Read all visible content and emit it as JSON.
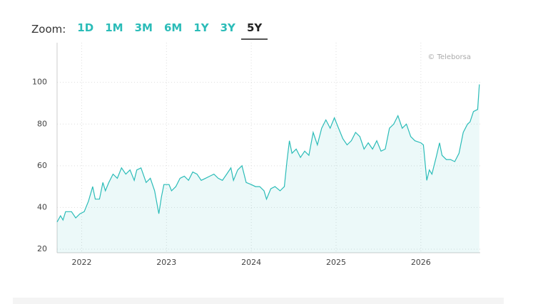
{
  "chart_data": {
    "type": "line",
    "zoom": {
      "label": "Zoom:",
      "options": [
        "1D",
        "1M",
        "3M",
        "6M",
        "1Y",
        "3Y",
        "5Y"
      ],
      "selected": 6
    },
    "credit": "© Teleborsa",
    "x": [
      2021.71,
      2021.75,
      2021.78,
      2021.81,
      2021.88,
      2021.93,
      2021.98,
      2022.03,
      2022.08,
      2022.13,
      2022.16,
      2022.21,
      2022.25,
      2022.28,
      2022.32,
      2022.37,
      2022.42,
      2022.47,
      2022.52,
      2022.57,
      2022.62,
      2022.65,
      2022.7,
      2022.76,
      2022.81,
      2022.86,
      2022.91,
      2022.94,
      2022.97,
      2023.03,
      2023.06,
      2023.11,
      2023.16,
      2023.21,
      2023.26,
      2023.31,
      2023.36,
      2023.41,
      2023.46,
      2023.51,
      2023.56,
      2023.61,
      2023.66,
      2023.71,
      2023.76,
      2023.79,
      2023.84,
      2023.89,
      2023.94,
      2024.0,
      2024.05,
      2024.1,
      2024.15,
      2024.18,
      2024.23,
      2024.28,
      2024.34,
      2024.39,
      2024.42,
      2024.45,
      2024.48,
      2024.53,
      2024.58,
      2024.63,
      2024.68,
      2024.73,
      2024.78,
      2024.83,
      2024.88,
      2024.93,
      2024.98,
      2025.03,
      2025.08,
      2025.13,
      2025.18,
      2025.23,
      2025.28,
      2025.33,
      2025.38,
      2025.43,
      2025.48,
      2025.53,
      2025.58,
      2025.63,
      2025.68,
      2025.73,
      2025.78,
      2025.83,
      2025.88,
      2025.93,
      2026.0,
      2026.03,
      2026.07,
      2026.1,
      2026.13,
      2026.18,
      2026.22,
      2026.25,
      2026.3,
      2026.35,
      2026.4,
      2026.45,
      2026.5,
      2026.55,
      2026.58,
      2026.62,
      2026.67,
      2026.69
    ],
    "series": [
      {
        "color": "#2bbcb8",
        "values": [
          33,
          36,
          34,
          38,
          38,
          35,
          37,
          38,
          43,
          50,
          44,
          44,
          52,
          48,
          52,
          56,
          54,
          59,
          56,
          58,
          53,
          58,
          59,
          52,
          54,
          48,
          37,
          45,
          51,
          51,
          48,
          50,
          54,
          55,
          53,
          57,
          56,
          53,
          54,
          55,
          56,
          54,
          53,
          56,
          59,
          53,
          58,
          60,
          52,
          51,
          50,
          50,
          48,
          44,
          49,
          50,
          48,
          50,
          62,
          72,
          66,
          68,
          64,
          67,
          65,
          76,
          70,
          78,
          82,
          78,
          83,
          78,
          73,
          70,
          72,
          76,
          74,
          68,
          71,
          68,
          72,
          67,
          68,
          78,
          80,
          84,
          78,
          80,
          74,
          72,
          71,
          70,
          53,
          58,
          56,
          64,
          71,
          65,
          63,
          63,
          62,
          66,
          76,
          80,
          81,
          86,
          87,
          99
        ]
      }
    ],
    "xlim": [
      2021.71,
      2026.7
    ],
    "xticks": [
      2022,
      2023,
      2024,
      2025,
      2026
    ],
    "ylim": [
      18.3,
      119
    ],
    "yticks": [
      20,
      40,
      60,
      80,
      100
    ],
    "grid": true
  }
}
